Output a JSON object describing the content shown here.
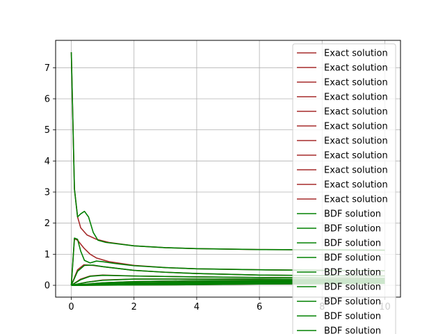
{
  "chart_data": {
    "type": "line",
    "title": "",
    "xlabel": "",
    "ylabel": "",
    "xlim": [
      -0.5,
      10.5
    ],
    "ylim": [
      -0.38,
      7.88
    ],
    "xticks": [
      0,
      2,
      4,
      6,
      8,
      10
    ],
    "yticks": [
      0,
      1,
      2,
      3,
      4,
      5,
      6,
      7
    ],
    "grid": true,
    "legend_placement": "right, clipped at bottom",
    "colors": {
      "exact": "#a52a2a",
      "bdf": "#008000",
      "grid": "#b0b0b0"
    },
    "legend": [
      "Exact solution",
      "Exact solution",
      "Exact solution",
      "Exact solution",
      "Exact solution",
      "Exact solution",
      "Exact solution",
      "Exact solution",
      "Exact solution",
      "Exact solution",
      "Exact solution",
      "BDF solution",
      "BDF solution",
      "BDF solution",
      "BDF solution",
      "BDF solution",
      "BDF solution",
      "BDF solution",
      "BDF solution",
      "BDF solution"
    ],
    "series": [
      {
        "group": "exact",
        "points": [
          [
            0,
            7.5
          ],
          [
            0.1,
            3.1
          ],
          [
            0.2,
            2.2
          ],
          [
            0.3,
            1.85
          ],
          [
            0.5,
            1.62
          ],
          [
            0.8,
            1.48
          ],
          [
            1.2,
            1.38
          ],
          [
            2,
            1.27
          ],
          [
            3,
            1.21
          ],
          [
            4,
            1.18
          ],
          [
            6,
            1.15
          ],
          [
            8,
            1.14
          ],
          [
            10,
            1.13
          ]
        ]
      },
      {
        "group": "exact",
        "points": [
          [
            0,
            0
          ],
          [
            0.1,
            1.5
          ],
          [
            0.2,
            1.45
          ],
          [
            0.4,
            1.2
          ],
          [
            0.6,
            1.0
          ],
          [
            0.8,
            0.88
          ],
          [
            1.2,
            0.76
          ],
          [
            2,
            0.64
          ],
          [
            3,
            0.57
          ],
          [
            4,
            0.53
          ],
          [
            6,
            0.5
          ],
          [
            8,
            0.48
          ],
          [
            10,
            0.47
          ]
        ]
      },
      {
        "group": "exact",
        "points": [
          [
            0,
            0
          ],
          [
            0.2,
            0.5
          ],
          [
            0.4,
            0.66
          ],
          [
            0.7,
            0.64
          ],
          [
            1,
            0.6
          ],
          [
            2,
            0.48
          ],
          [
            3,
            0.42
          ],
          [
            4,
            0.38
          ],
          [
            6,
            0.33
          ],
          [
            8,
            0.31
          ],
          [
            10,
            0.3
          ]
        ]
      },
      {
        "group": "exact",
        "points": [
          [
            0,
            0
          ],
          [
            0.3,
            0.2
          ],
          [
            0.6,
            0.3
          ],
          [
            1,
            0.33
          ],
          [
            2,
            0.3
          ],
          [
            4,
            0.27
          ],
          [
            6,
            0.25
          ],
          [
            8,
            0.24
          ],
          [
            10,
            0.23
          ]
        ]
      },
      {
        "group": "exact",
        "points": [
          [
            0,
            0
          ],
          [
            0.5,
            0.1
          ],
          [
            1,
            0.17
          ],
          [
            2,
            0.2
          ],
          [
            4,
            0.2
          ],
          [
            6,
            0.2
          ],
          [
            8,
            0.19
          ],
          [
            10,
            0.19
          ]
        ]
      },
      {
        "group": "exact",
        "points": [
          [
            0,
            0
          ],
          [
            1,
            0.08
          ],
          [
            2,
            0.12
          ],
          [
            4,
            0.15
          ],
          [
            6,
            0.16
          ],
          [
            8,
            0.16
          ],
          [
            10,
            0.16
          ]
        ]
      },
      {
        "group": "exact",
        "points": [
          [
            0,
            0
          ],
          [
            1,
            0.05
          ],
          [
            2,
            0.08
          ],
          [
            4,
            0.11
          ],
          [
            6,
            0.13
          ],
          [
            8,
            0.14
          ],
          [
            10,
            0.14
          ]
        ]
      },
      {
        "group": "exact",
        "points": [
          [
            0,
            0
          ],
          [
            1,
            0.03
          ],
          [
            2,
            0.05
          ],
          [
            4,
            0.08
          ],
          [
            6,
            0.1
          ],
          [
            8,
            0.11
          ],
          [
            10,
            0.12
          ]
        ]
      },
      {
        "group": "exact",
        "points": [
          [
            0,
            0
          ],
          [
            2,
            0.03
          ],
          [
            4,
            0.06
          ],
          [
            6,
            0.08
          ],
          [
            8,
            0.09
          ],
          [
            10,
            0.1
          ]
        ]
      },
      {
        "group": "exact",
        "points": [
          [
            0,
            0
          ],
          [
            2,
            0.02
          ],
          [
            4,
            0.04
          ],
          [
            6,
            0.06
          ],
          [
            8,
            0.07
          ],
          [
            10,
            0.08
          ]
        ]
      },
      {
        "group": "exact",
        "points": [
          [
            0,
            0
          ],
          [
            2,
            0.01
          ],
          [
            4,
            0.02
          ],
          [
            6,
            0.04
          ],
          [
            8,
            0.05
          ],
          [
            10,
            0.06
          ]
        ]
      },
      {
        "group": "bdf",
        "points": [
          [
            0,
            7.5
          ],
          [
            0.1,
            3.1
          ],
          [
            0.2,
            2.2
          ],
          [
            0.3,
            2.3
          ],
          [
            0.42,
            2.38
          ],
          [
            0.55,
            2.2
          ],
          [
            0.7,
            1.7
          ],
          [
            0.85,
            1.45
          ],
          [
            1.1,
            1.38
          ],
          [
            2,
            1.27
          ],
          [
            3,
            1.21
          ],
          [
            4,
            1.18
          ],
          [
            6,
            1.15
          ],
          [
            8,
            1.14
          ],
          [
            10,
            1.13
          ]
        ]
      },
      {
        "group": "bdf",
        "points": [
          [
            0,
            0
          ],
          [
            0.1,
            1.52
          ],
          [
            0.2,
            1.48
          ],
          [
            0.3,
            1.1
          ],
          [
            0.42,
            0.8
          ],
          [
            0.6,
            0.72
          ],
          [
            0.8,
            0.78
          ],
          [
            1,
            0.76
          ],
          [
            1.4,
            0.7
          ],
          [
            2,
            0.63
          ],
          [
            3,
            0.57
          ],
          [
            4,
            0.53
          ],
          [
            6,
            0.5
          ],
          [
            8,
            0.48
          ],
          [
            10,
            0.47
          ]
        ]
      },
      {
        "group": "bdf",
        "points": [
          [
            0,
            0
          ],
          [
            0.2,
            0.45
          ],
          [
            0.42,
            0.64
          ],
          [
            0.7,
            0.65
          ],
          [
            1,
            0.6
          ],
          [
            2,
            0.48
          ],
          [
            3,
            0.42
          ],
          [
            4,
            0.38
          ],
          [
            6,
            0.33
          ],
          [
            8,
            0.31
          ],
          [
            10,
            0.3
          ]
        ]
      },
      {
        "group": "bdf",
        "points": [
          [
            0,
            0
          ],
          [
            0.3,
            0.18
          ],
          [
            0.6,
            0.29
          ],
          [
            1,
            0.32
          ],
          [
            2,
            0.3
          ],
          [
            4,
            0.27
          ],
          [
            6,
            0.25
          ],
          [
            8,
            0.24
          ],
          [
            10,
            0.23
          ]
        ]
      },
      {
        "group": "bdf",
        "points": [
          [
            0,
            0
          ],
          [
            0.5,
            0.1
          ],
          [
            1,
            0.16
          ],
          [
            2,
            0.2
          ],
          [
            4,
            0.2
          ],
          [
            6,
            0.2
          ],
          [
            8,
            0.19
          ],
          [
            10,
            0.19
          ]
        ]
      },
      {
        "group": "bdf",
        "points": [
          [
            0,
            0
          ],
          [
            1,
            0.08
          ],
          [
            2,
            0.12
          ],
          [
            4,
            0.15
          ],
          [
            6,
            0.16
          ],
          [
            8,
            0.16
          ],
          [
            10,
            0.16
          ]
        ]
      },
      {
        "group": "bdf",
        "points": [
          [
            0,
            0
          ],
          [
            1,
            0.05
          ],
          [
            2,
            0.08
          ],
          [
            4,
            0.11
          ],
          [
            6,
            0.13
          ],
          [
            8,
            0.14
          ],
          [
            10,
            0.14
          ]
        ]
      },
      {
        "group": "bdf",
        "points": [
          [
            0,
            0
          ],
          [
            1,
            0.03
          ],
          [
            2,
            0.05
          ],
          [
            4,
            0.08
          ],
          [
            6,
            0.1
          ],
          [
            8,
            0.11
          ],
          [
            10,
            0.12
          ]
        ]
      },
      {
        "group": "bdf",
        "points": [
          [
            0,
            0
          ],
          [
            2,
            0.03
          ],
          [
            4,
            0.06
          ],
          [
            6,
            0.08
          ],
          [
            8,
            0.09
          ],
          [
            10,
            0.1
          ]
        ]
      },
      {
        "group": "bdf",
        "points": [
          [
            0,
            0
          ],
          [
            2,
            0.02
          ],
          [
            4,
            0.04
          ],
          [
            6,
            0.06
          ],
          [
            8,
            0.07
          ],
          [
            10,
            0.08
          ]
        ]
      },
      {
        "group": "bdf",
        "points": [
          [
            0,
            0
          ],
          [
            2,
            0.01
          ],
          [
            4,
            0.02
          ],
          [
            6,
            0.04
          ],
          [
            8,
            0.05
          ],
          [
            10,
            0.06
          ]
        ]
      }
    ]
  }
}
